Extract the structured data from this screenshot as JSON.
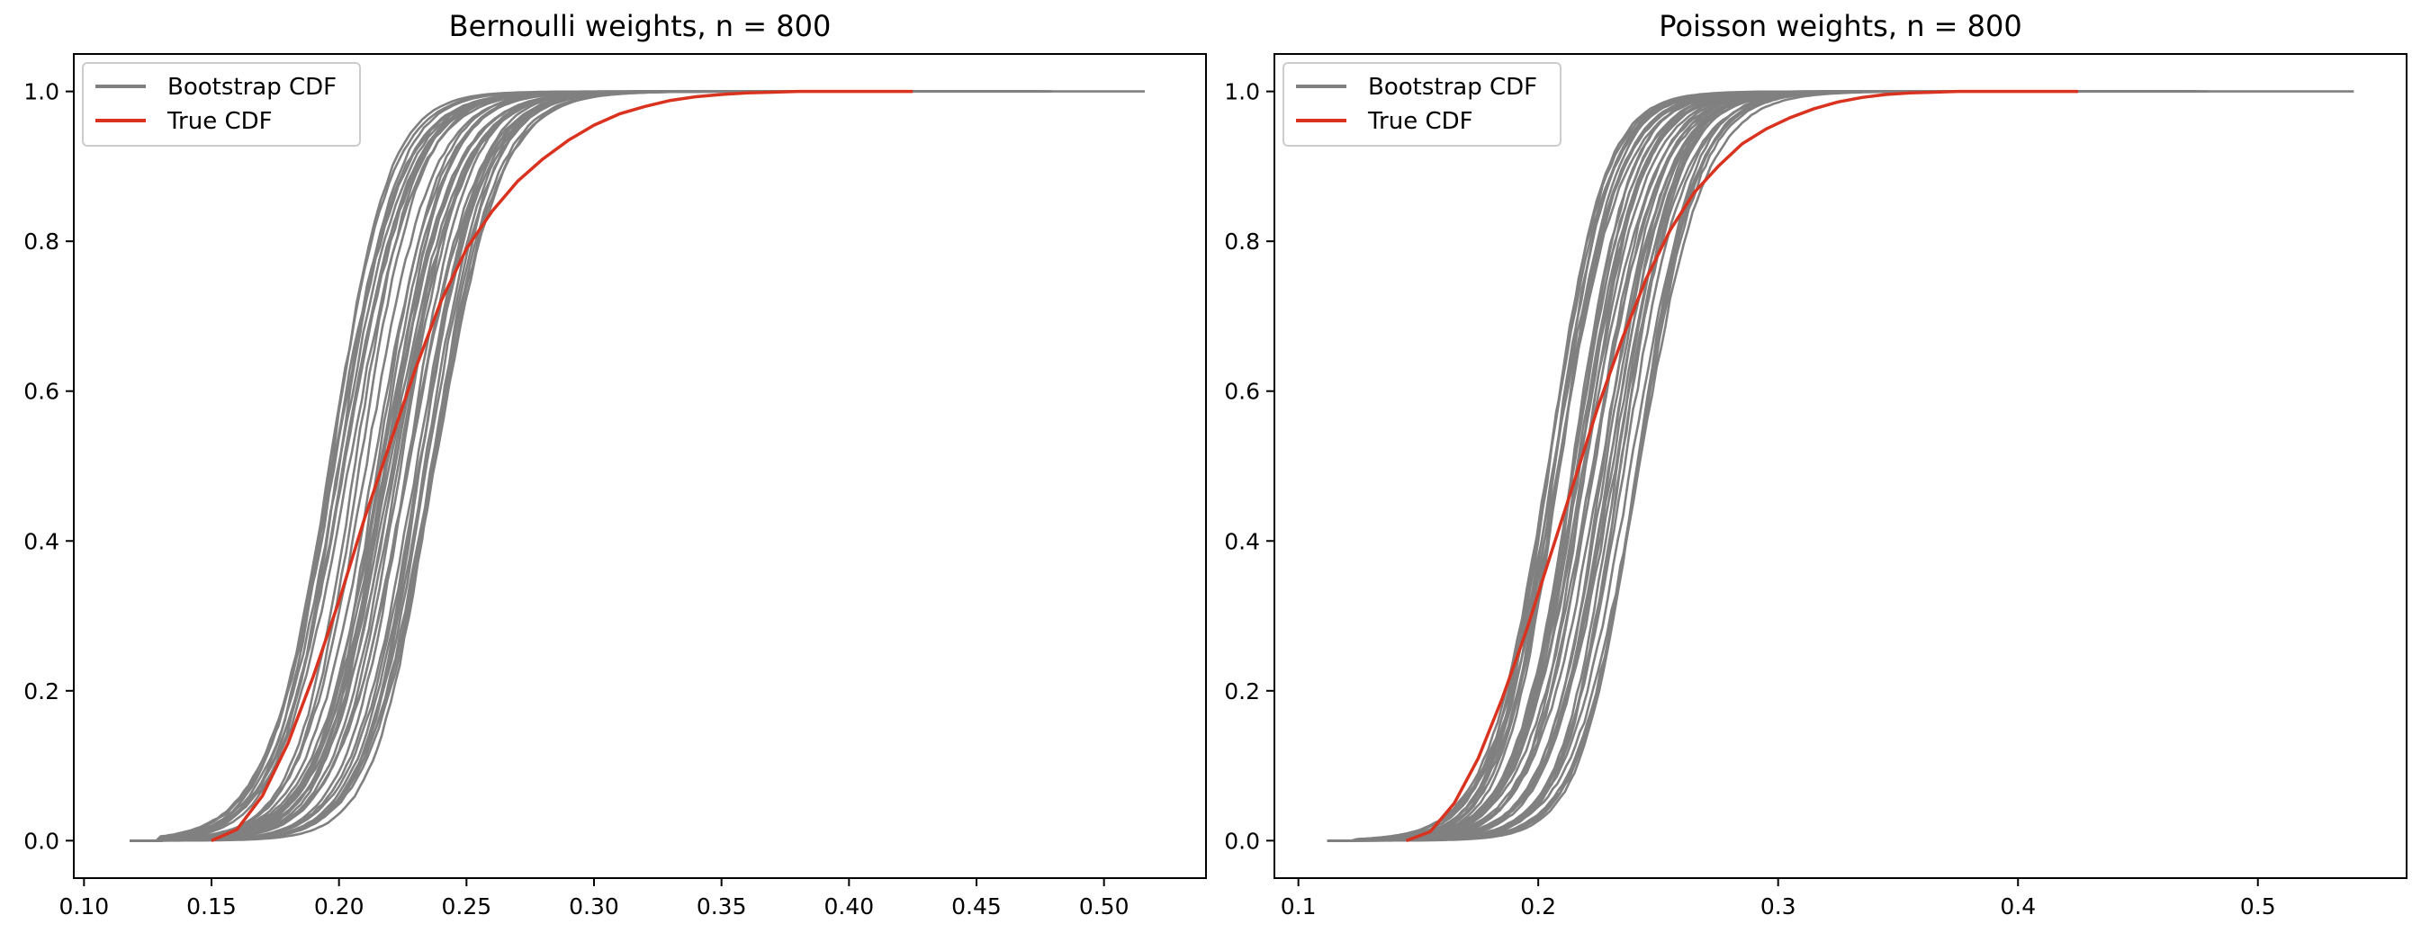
{
  "chart_data": [
    {
      "type": "line",
      "title": "Bernoulli weights, n = 800",
      "xlabel": "",
      "ylabel": "",
      "xlim": [
        0.096,
        0.54
      ],
      "ylim": [
        -0.05,
        1.05
      ],
      "xticks": [
        0.1,
        0.15,
        0.2,
        0.25,
        0.3,
        0.35,
        0.4,
        0.45,
        0.5
      ],
      "xtick_labels": [
        "0.10",
        "0.15",
        "0.20",
        "0.25",
        "0.30",
        "0.35",
        "0.40",
        "0.45",
        "0.50"
      ],
      "yticks": [
        0.0,
        0.2,
        0.4,
        0.6,
        0.8,
        1.0
      ],
      "ytick_labels": [
        "0.0",
        "0.2",
        "0.4",
        "0.6",
        "0.8",
        "1.0"
      ],
      "legend": [
        "Bootstrap CDF",
        "True CDF"
      ],
      "legend_position": "top-left",
      "bootstrap": {
        "name": "Bootstrap CDF",
        "color": "#808080",
        "count": 40,
        "min_x": 0.118,
        "max_x": 0.516,
        "center_range": [
          0.196,
          0.238
        ],
        "width_range": [
          0.044,
          0.055
        ]
      },
      "series": [
        {
          "name": "True CDF",
          "color": "#d9331f",
          "x": [
            0.15,
            0.16,
            0.17,
            0.18,
            0.19,
            0.2,
            0.21,
            0.22,
            0.23,
            0.24,
            0.25,
            0.26,
            0.27,
            0.28,
            0.29,
            0.3,
            0.31,
            0.32,
            0.33,
            0.34,
            0.35,
            0.36,
            0.37,
            0.38,
            0.39,
            0.4,
            0.41,
            0.425
          ],
          "y": [
            0.0,
            0.015,
            0.06,
            0.13,
            0.22,
            0.32,
            0.43,
            0.53,
            0.63,
            0.72,
            0.79,
            0.84,
            0.88,
            0.91,
            0.935,
            0.955,
            0.97,
            0.98,
            0.988,
            0.993,
            0.996,
            0.998,
            0.999,
            1.0,
            1.0,
            1.0,
            1.0,
            1.0
          ]
        }
      ]
    },
    {
      "type": "line",
      "title": "Poisson weights, n = 800",
      "xlabel": "",
      "ylabel": "",
      "xlim": [
        0.09,
        0.562
      ],
      "ylim": [
        -0.05,
        1.05
      ],
      "xticks": [
        0.1,
        0.2,
        0.3,
        0.4,
        0.5
      ],
      "xtick_labels": [
        "0.1",
        "0.2",
        "0.3",
        "0.4",
        "0.5"
      ],
      "yticks": [
        0.0,
        0.2,
        0.4,
        0.6,
        0.8,
        1.0
      ],
      "ytick_labels": [
        "0.0",
        "0.2",
        "0.4",
        "0.6",
        "0.8",
        "1.0"
      ],
      "legend": [
        "Bootstrap CDF",
        "True CDF"
      ],
      "legend_position": "top-left",
      "bootstrap": {
        "name": "Bootstrap CDF",
        "color": "#808080",
        "count": 40,
        "min_x": 0.112,
        "max_x": 0.54,
        "center_range": [
          0.203,
          0.242
        ],
        "width_range": [
          0.045,
          0.056
        ]
      },
      "series": [
        {
          "name": "True CDF",
          "color": "#d9331f",
          "x": [
            0.145,
            0.155,
            0.165,
            0.175,
            0.185,
            0.195,
            0.205,
            0.215,
            0.225,
            0.235,
            0.245,
            0.255,
            0.265,
            0.275,
            0.285,
            0.295,
            0.305,
            0.315,
            0.325,
            0.335,
            0.345,
            0.355,
            0.365,
            0.375,
            0.385,
            0.4,
            0.425
          ],
          "y": [
            0.0,
            0.012,
            0.05,
            0.11,
            0.19,
            0.28,
            0.38,
            0.48,
            0.58,
            0.67,
            0.75,
            0.815,
            0.865,
            0.9,
            0.93,
            0.95,
            0.965,
            0.977,
            0.986,
            0.992,
            0.996,
            0.998,
            0.999,
            1.0,
            1.0,
            1.0,
            1.0
          ]
        }
      ]
    }
  ]
}
